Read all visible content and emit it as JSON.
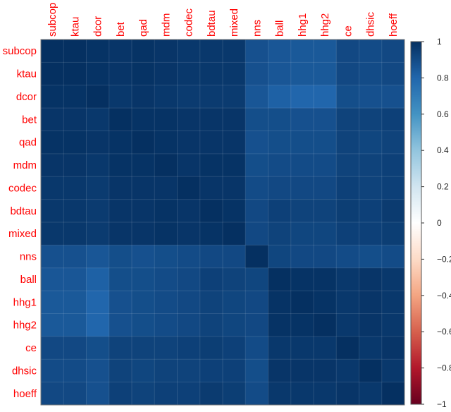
{
  "chart_data": {
    "type": "heatmap",
    "title": "",
    "row_labels": [
      "subcop",
      "ktau",
      "dcor",
      "bet",
      "qad",
      "mdm",
      "codec",
      "bdtau",
      "mixed",
      "nns",
      "ball",
      "hhg1",
      "hhg2",
      "ce",
      "dhsic",
      "hoeff"
    ],
    "col_labels": [
      "subcop",
      "ktau",
      "dcor",
      "bet",
      "qad",
      "mdm",
      "codec",
      "bdtau",
      "mixed",
      "nns",
      "ball",
      "hhg1",
      "hhg2",
      "ce",
      "dhsic",
      "hoeff"
    ],
    "label_color": "#ff0000",
    "values": [
      [
        1.0,
        1.0,
        0.99,
        0.98,
        0.99,
        0.98,
        0.97,
        0.97,
        0.97,
        0.88,
        0.86,
        0.85,
        0.85,
        0.91,
        0.9,
        0.91
      ],
      [
        1.0,
        1.0,
        0.99,
        0.98,
        0.99,
        0.98,
        0.97,
        0.97,
        0.97,
        0.88,
        0.86,
        0.85,
        0.85,
        0.91,
        0.9,
        0.91
      ],
      [
        0.99,
        0.99,
        1.0,
        0.97,
        0.98,
        0.97,
        0.96,
        0.96,
        0.96,
        0.86,
        0.82,
        0.8,
        0.8,
        0.89,
        0.88,
        0.88
      ],
      [
        0.98,
        0.98,
        0.97,
        1.0,
        0.99,
        0.99,
        0.98,
        0.98,
        0.98,
        0.89,
        0.89,
        0.88,
        0.88,
        0.93,
        0.93,
        0.94
      ],
      [
        0.99,
        0.99,
        0.98,
        0.99,
        1.0,
        0.99,
        0.98,
        0.98,
        0.98,
        0.88,
        0.89,
        0.89,
        0.89,
        0.93,
        0.92,
        0.93
      ],
      [
        0.98,
        0.98,
        0.97,
        0.99,
        0.99,
        1.0,
        0.98,
        0.99,
        0.99,
        0.89,
        0.9,
        0.9,
        0.9,
        0.93,
        0.93,
        0.94
      ],
      [
        0.97,
        0.97,
        0.96,
        0.98,
        0.98,
        0.98,
        1.0,
        0.98,
        0.98,
        0.9,
        0.91,
        0.91,
        0.91,
        0.94,
        0.93,
        0.94
      ],
      [
        0.97,
        0.97,
        0.96,
        0.98,
        0.98,
        0.99,
        0.98,
        1.0,
        0.99,
        0.91,
        0.94,
        0.93,
        0.93,
        0.95,
        0.94,
        0.96
      ],
      [
        0.97,
        0.97,
        0.96,
        0.98,
        0.98,
        0.99,
        0.98,
        0.99,
        1.0,
        0.91,
        0.93,
        0.92,
        0.92,
        0.94,
        0.94,
        0.95
      ],
      [
        0.88,
        0.88,
        0.86,
        0.89,
        0.88,
        0.89,
        0.9,
        0.91,
        0.91,
        1.0,
        0.92,
        0.91,
        0.91,
        0.9,
        0.89,
        0.9
      ],
      [
        0.86,
        0.86,
        0.82,
        0.89,
        0.89,
        0.9,
        0.91,
        0.94,
        0.93,
        0.92,
        1.0,
        0.99,
        0.99,
        0.97,
        0.98,
        0.97
      ],
      [
        0.85,
        0.85,
        0.8,
        0.88,
        0.89,
        0.9,
        0.91,
        0.93,
        0.92,
        0.91,
        0.99,
        1.0,
        0.99,
        0.97,
        0.98,
        0.97
      ],
      [
        0.85,
        0.85,
        0.8,
        0.88,
        0.89,
        0.9,
        0.91,
        0.93,
        0.92,
        0.91,
        0.99,
        0.99,
        1.0,
        0.97,
        0.98,
        0.97
      ],
      [
        0.91,
        0.91,
        0.89,
        0.93,
        0.93,
        0.93,
        0.94,
        0.95,
        0.94,
        0.9,
        0.97,
        0.97,
        0.97,
        1.0,
        0.97,
        0.98
      ],
      [
        0.9,
        0.9,
        0.88,
        0.93,
        0.92,
        0.93,
        0.93,
        0.94,
        0.94,
        0.89,
        0.98,
        0.98,
        0.98,
        0.97,
        1.0,
        0.97
      ],
      [
        0.91,
        0.91,
        0.88,
        0.94,
        0.93,
        0.94,
        0.94,
        0.96,
        0.95,
        0.9,
        0.97,
        0.97,
        0.97,
        0.98,
        0.97,
        1.0
      ]
    ],
    "color_scale": {
      "range": [
        -1,
        1
      ],
      "ticks": [
        "1",
        "0.8",
        "0.6",
        "0.4",
        "0.2",
        "0",
        "−0.2",
        "−0.4",
        "−0.6",
        "−0.8",
        "−1"
      ],
      "colors": [
        "#67001f",
        "#b2182b",
        "#d6604d",
        "#f4a582",
        "#fddbc7",
        "#ffffff",
        "#d1e5f0",
        "#92c5de",
        "#4393c3",
        "#2166ac",
        "#053061"
      ]
    },
    "legend_position": "right",
    "grid": true
  }
}
